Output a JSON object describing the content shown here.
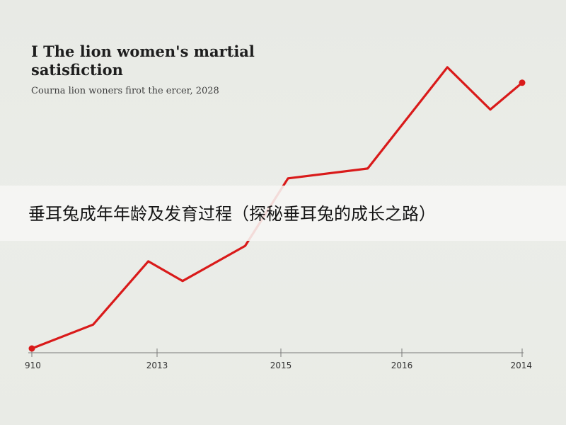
{
  "chart_data": {
    "type": "line",
    "title": "I The lion women's martial satisfiction",
    "subtitle": "Courna lion woners firot the ercer, 2028",
    "x_tick_labels": [
      "910",
      "2013",
      "2015",
      "2016",
      "2014"
    ],
    "series": [
      {
        "color": "#d91a1a",
        "points": [
          {
            "x": 0.0,
            "y": 0.0
          },
          {
            "x": 0.5,
            "y": 8.5
          },
          {
            "x": 0.95,
            "y": 31.0
          },
          {
            "x": 1.23,
            "y": 24.0
          },
          {
            "x": 1.74,
            "y": 36.5
          },
          {
            "x": 2.09,
            "y": 60.5
          },
          {
            "x": 2.74,
            "y": 64.0
          },
          {
            "x": 3.39,
            "y": 100.0
          },
          {
            "x": 3.74,
            "y": 85.0
          },
          {
            "x": 4.0,
            "y": 94.5
          }
        ]
      }
    ],
    "ylim": [
      0,
      100
    ],
    "grid": false,
    "legend": "none"
  },
  "banner": {
    "text": "垂耳兔成年年龄及发育过程（探秘垂耳兔的成长之路）"
  }
}
